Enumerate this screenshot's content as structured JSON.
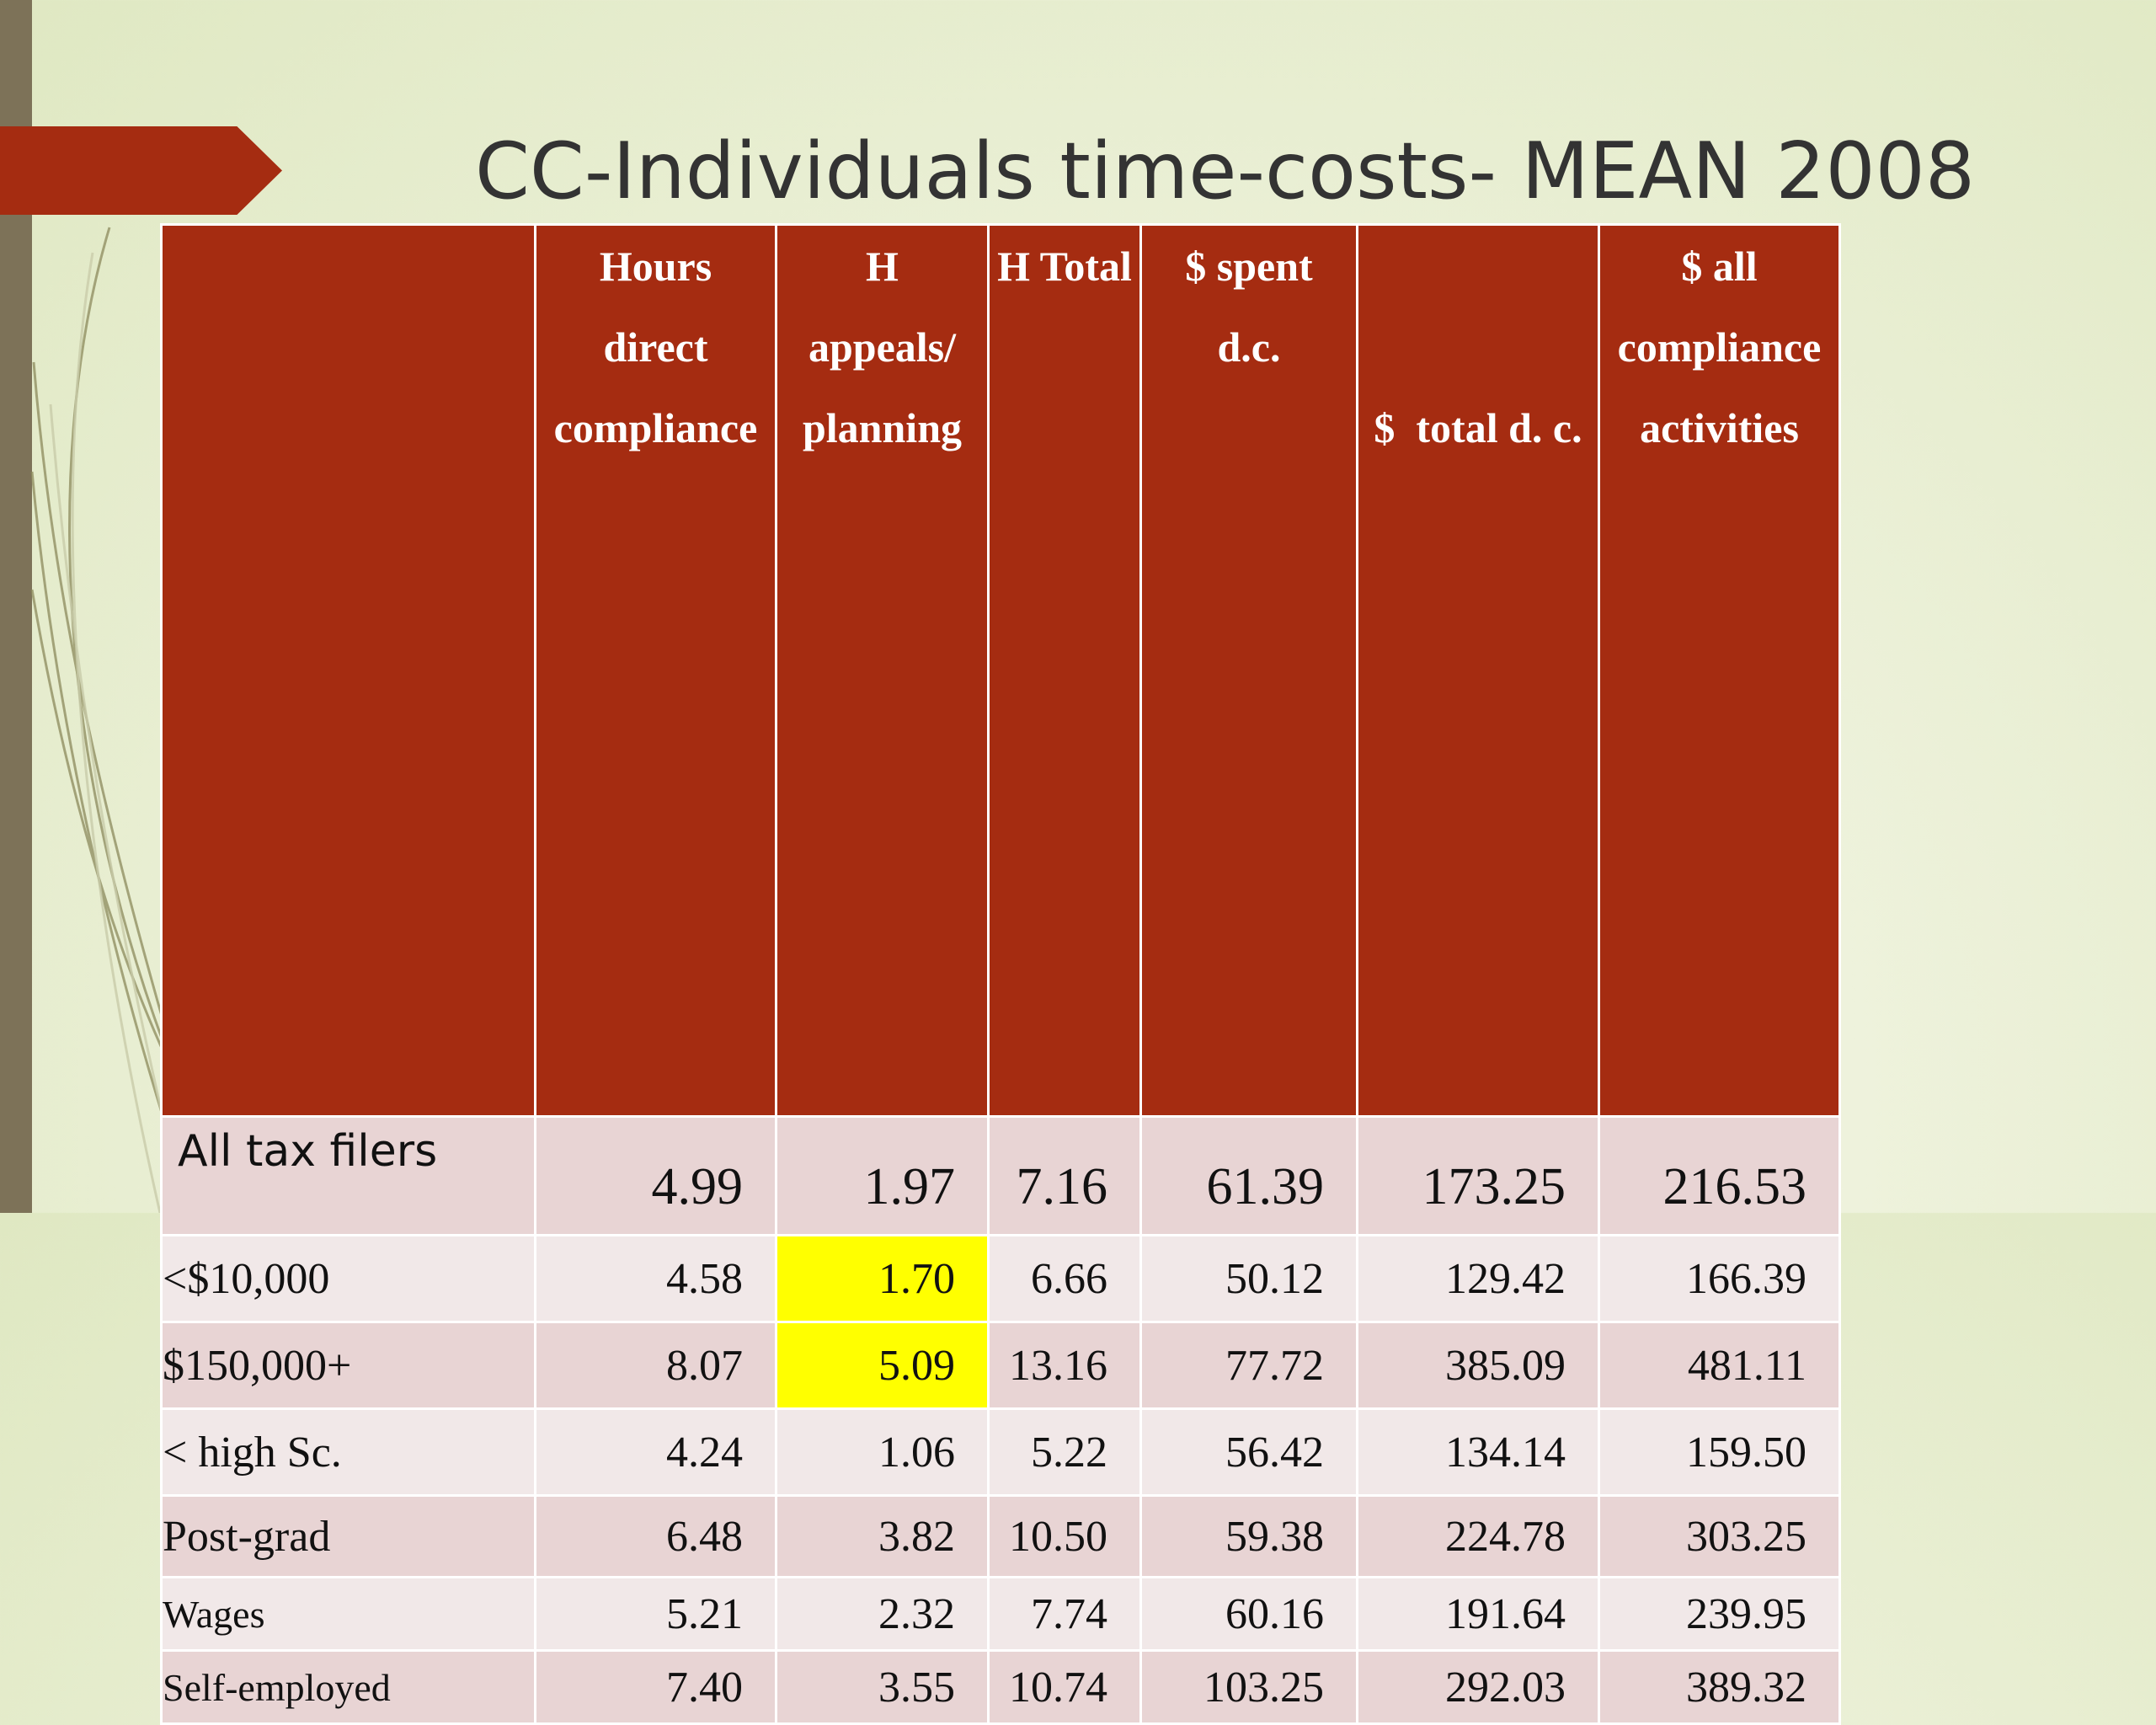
{
  "title": "CC-Individuals time-costs- MEAN 2008",
  "table": {
    "headers": [
      "",
      "Hours direct compliance",
      "H appeals/ planning",
      "H Total",
      "$ spent d.c.",
      "$  total d. c.",
      "$ all compliance activities"
    ],
    "header_lines": [
      [],
      [
        "Hours",
        "direct",
        "compliance"
      ],
      [
        "H",
        "appeals/",
        "planning"
      ],
      [
        "H Total"
      ],
      [
        "$ spent",
        "d.c."
      ],
      [
        "$  total d. c."
      ],
      [
        "$ all",
        "compliance",
        "activities"
      ]
    ],
    "rows": [
      {
        "label": "All tax filers",
        "values": [
          "4.99",
          "1.97",
          "7.16",
          "61.39",
          "173.25",
          "216.53"
        ]
      },
      {
        "label": "<$10,000",
        "values": [
          "4.58",
          "1.70",
          "6.66",
          "50.12",
          "129.42",
          "166.39"
        ]
      },
      {
        "label": "$150,000+",
        "values": [
          "8.07",
          "5.09",
          "13.16",
          "77.72",
          "385.09",
          "481.11"
        ]
      },
      {
        "label": "< high Sc.",
        "values": [
          "4.24",
          "1.06",
          "5.22",
          "56.42",
          "134.14",
          "159.50"
        ]
      },
      {
        "label": "Post-grad",
        "values": [
          "6.48",
          "3.82",
          "10.50",
          "59.38",
          "224.78",
          "303.25"
        ]
      },
      {
        "label": "Wages",
        "values": [
          "5.21",
          "2.32",
          "7.74",
          "60.16",
          "191.64",
          "239.95"
        ]
      },
      {
        "label": "Self-employed",
        "values": [
          "7.40",
          "3.55",
          "10.74",
          "103.25",
          "292.03",
          "389.32"
        ]
      }
    ],
    "highlight_color": "#ffff00",
    "header_color": "#a52c11"
  }
}
